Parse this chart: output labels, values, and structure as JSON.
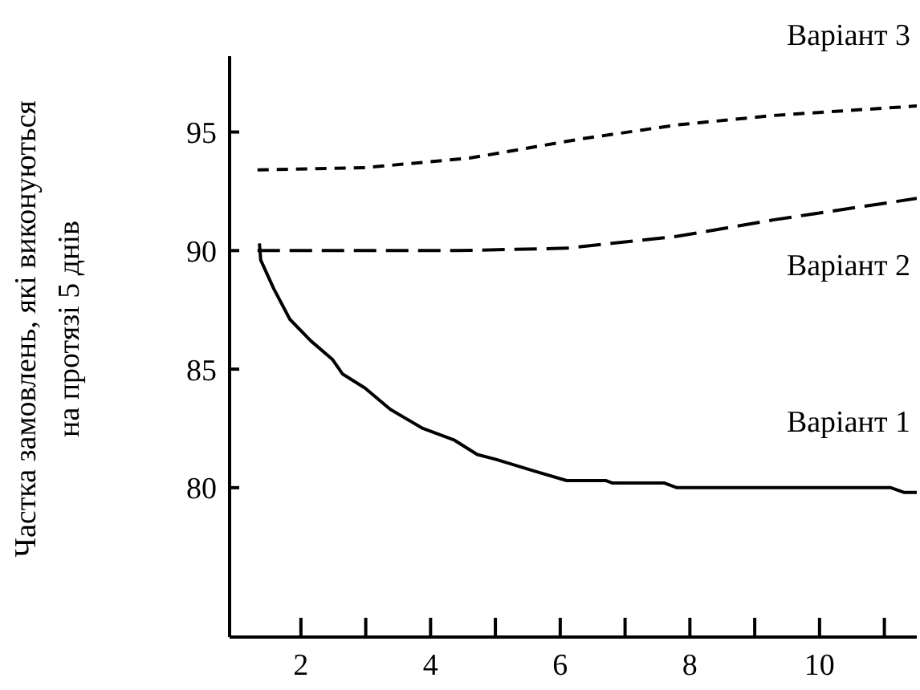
{
  "chart_data": {
    "type": "line",
    "ylabel": "Частка замовлень, які виконуються\nна протязі 5 днів",
    "xlim": [
      0.9,
      11.5
    ],
    "ylim": [
      73.7,
      98.2
    ],
    "xticks": [
      2,
      {
        "value": 3,
        "label": null
      },
      4,
      {
        "value": 5,
        "label": null
      },
      6,
      {
        "value": 7,
        "label": null
      },
      8,
      {
        "value": 9,
        "label": null
      },
      10,
      {
        "value": 11,
        "label": null
      }
    ],
    "yticks": [
      80,
      85,
      90,
      95
    ],
    "marker": "none",
    "series": [
      {
        "name": "Варіант 1",
        "color": "#000000",
        "line_style": "solid",
        "x": [
          1.36,
          1.38,
          1.58,
          1.83,
          2.15,
          2.49,
          2.64,
          2.99,
          3.38,
          3.88,
          4.37,
          4.72,
          5.0,
          5.6,
          6.1,
          6.7,
          6.8,
          7.6,
          7.8,
          11.1,
          11.3,
          11.5
        ],
        "values": [
          90.3,
          89.6,
          88.4,
          87.1,
          86.2,
          85.4,
          84.8,
          84.2,
          83.3,
          82.5,
          82.0,
          81.4,
          81.2,
          80.7,
          80.3,
          80.3,
          80.2,
          80.2,
          80.0,
          80.0,
          79.8,
          79.8
        ]
      },
      {
        "name": "Варіант 2",
        "color": "#000000",
        "line_style": "dashed",
        "x": [
          1.33,
          4.4,
          6.1,
          7.8,
          9.3,
          11.5
        ],
        "values": [
          90.0,
          90.0,
          90.1,
          90.6,
          91.3,
          92.2
        ]
      },
      {
        "name": "Варіант 3",
        "color": "#000000",
        "line_style": "dotted",
        "x": [
          1.33,
          3.0,
          4.6,
          6.3,
          7.8,
          9.3,
          11.5
        ],
        "values": [
          93.4,
          93.5,
          93.9,
          94.7,
          95.3,
          95.7,
          96.1
        ]
      }
    ]
  }
}
